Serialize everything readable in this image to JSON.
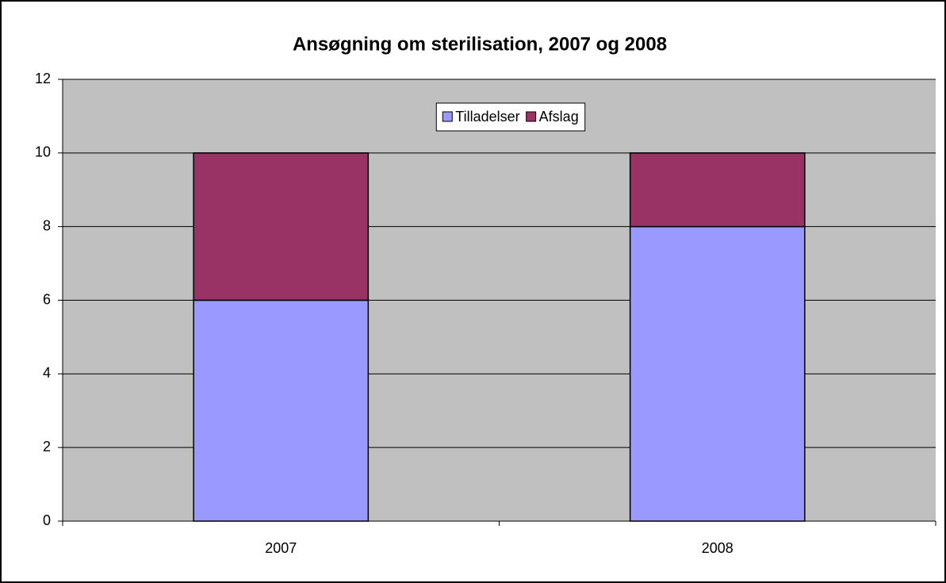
{
  "chart_data": {
    "type": "stacked-bar",
    "title": "Ansøgning om sterilisation, 2007 og 2008",
    "categories": [
      "2007",
      "2008"
    ],
    "series": [
      {
        "name": "Tilladelser",
        "color": "#9999ff",
        "values": [
          6,
          8
        ]
      },
      {
        "name": "Afslag",
        "color": "#993366",
        "values": [
          4,
          2
        ]
      }
    ],
    "ylim": [
      0,
      12
    ],
    "yticks": [
      0,
      2,
      4,
      6,
      8,
      10,
      12
    ],
    "grid": true,
    "legend": "top"
  }
}
